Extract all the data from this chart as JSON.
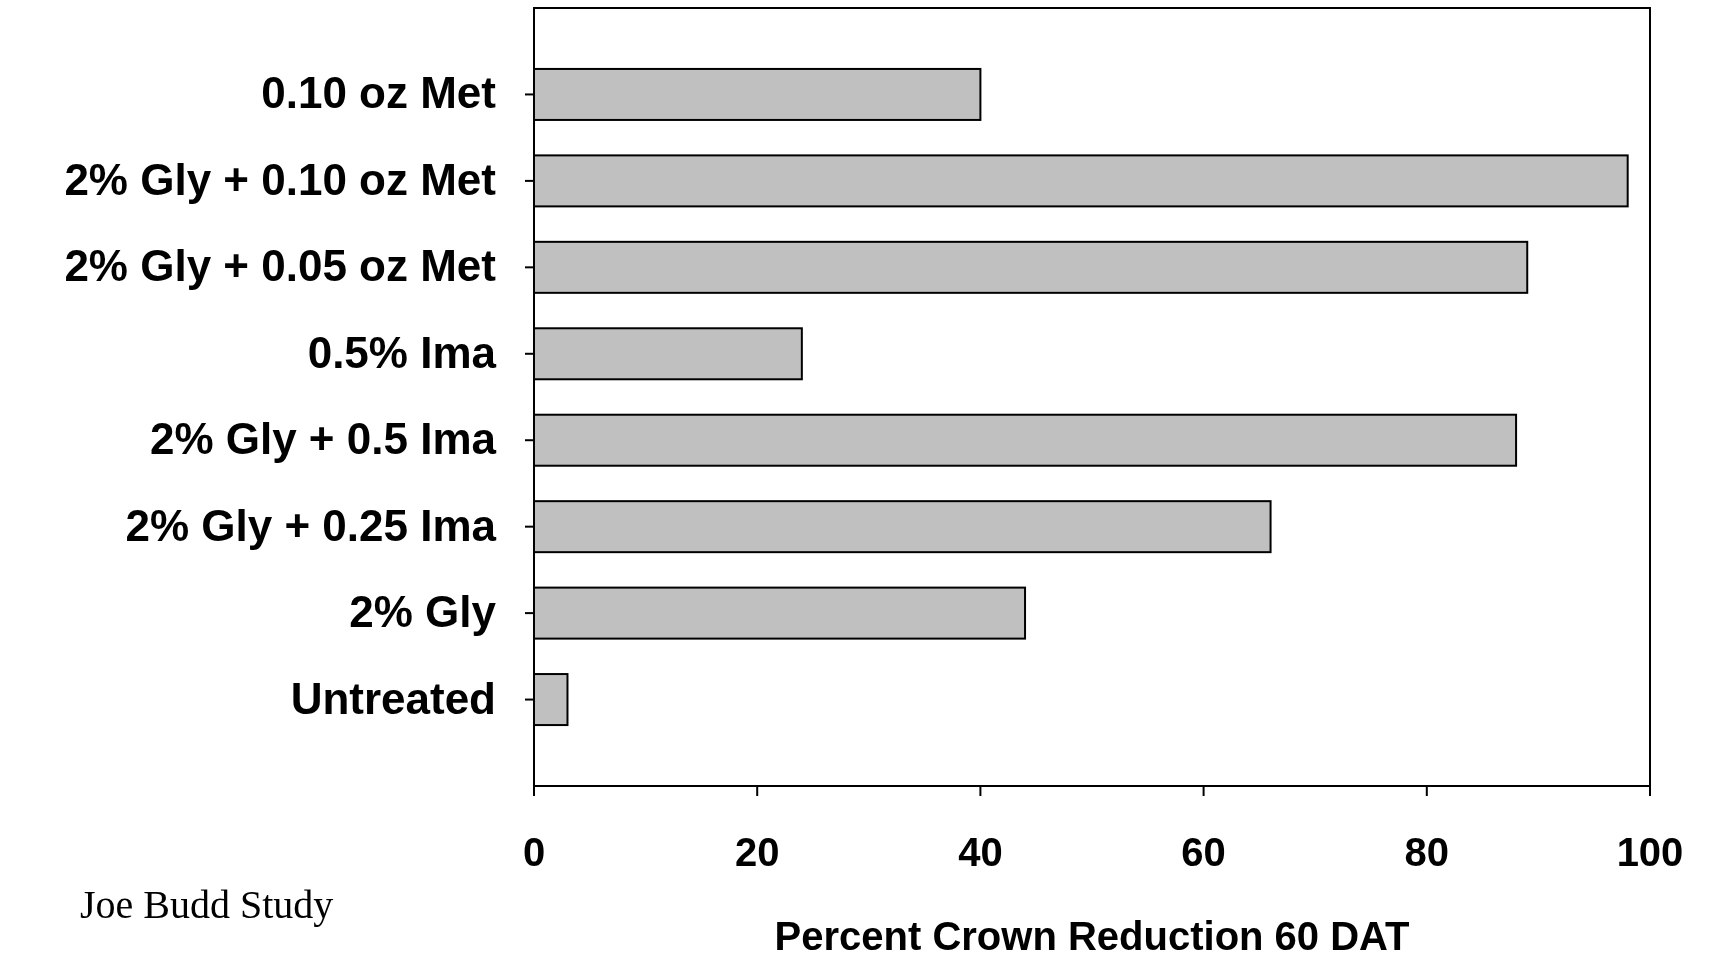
{
  "chart_data": {
    "type": "bar",
    "orientation": "horizontal",
    "xlabel": "Percent Crown Reduction 60 DAT",
    "categories": [
      "0.10 oz Met",
      "2% Gly + 0.10 oz Met",
      "2% Gly + 0.05 oz Met",
      "0.5% Ima",
      "2% Gly + 0.5 Ima",
      "2% Gly + 0.25 Ima",
      "2% Gly",
      "Untreated"
    ],
    "values": [
      40,
      98,
      89,
      24,
      88,
      66,
      44,
      3
    ],
    "color": "#c0c0c0",
    "xlim": [
      0,
      100
    ],
    "xticks": [
      0,
      20,
      40,
      60,
      80,
      100
    ],
    "grid": false,
    "annotations": [
      "Joe Budd Study"
    ]
  }
}
